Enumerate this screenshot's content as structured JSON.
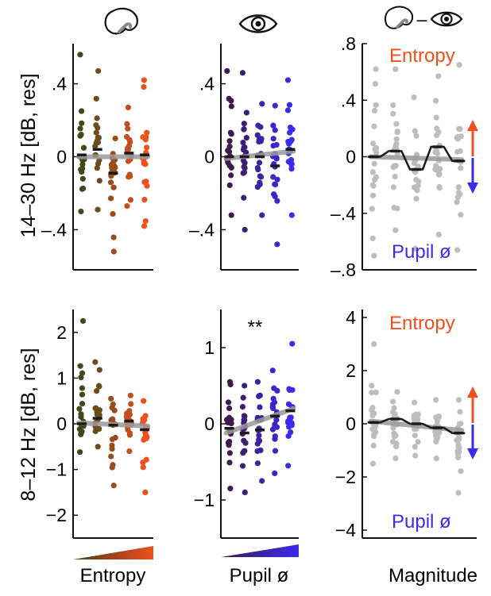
{
  "figure": {
    "row_labels": [
      "14–30 Hz [dB, res]",
      "8–12 Hz [dB, res]"
    ],
    "column_labels": [
      "Entropy",
      "Pupil ø",
      "Magnitude"
    ],
    "column_icons": [
      "brain-icon",
      "eye-icon",
      "brain-minus-eye-icon"
    ],
    "icon_minus": "–",
    "magnitude_labels": {
      "top": "Entropy",
      "bottom": "Pupil ø"
    },
    "colors": {
      "entropy_low": "#3d4a1c",
      "entropy_high": "#f0501e",
      "pupil_low": "#3e1a4e",
      "pupil_high": "#3a2bf0",
      "magnitude": "#bdbdbd",
      "trend": "#9a9a9a",
      "arrow_up": "#f0501e",
      "arrow_down": "#3a2bf0",
      "text_entropy": "#f0501e",
      "text_pupil": "#3a2bf0"
    }
  },
  "chart_data": [
    {
      "type": "scatter",
      "id": "beta-entropy",
      "ylabel": "14–30 Hz [dB, res]",
      "xlabel": "Entropy",
      "ylim": [
        -0.62,
        0.62
      ],
      "yticks": [
        0.4,
        0,
        -0.4
      ],
      "ytick_labels": [
        ".4",
        "0",
        "–.4"
      ],
      "annotation": "",
      "bins": 5,
      "group_means": [
        0.01,
        0.04,
        -0.09,
        0.02,
        0.01
      ],
      "trend": [
        0.0,
        0.0
      ],
      "spread": [
        [
          -0.3,
          0.56
        ],
        [
          -0.29,
          0.47
        ],
        [
          -0.52,
          0.1
        ],
        [
          -0.27,
          0.27
        ],
        [
          -0.38,
          0.42
        ]
      ]
    },
    {
      "type": "scatter",
      "id": "beta-pupil",
      "ylabel": "",
      "xlabel": "Pupil ø",
      "ylim": [
        -0.62,
        0.62
      ],
      "yticks": [
        0.4,
        0,
        -0.4
      ],
      "ytick_labels": [
        ".4",
        "0",
        "–.4"
      ],
      "annotation": "",
      "bins": 5,
      "group_means": [
        0.0,
        0.0,
        0.0,
        -0.05,
        0.04
      ],
      "trend": [
        -0.01,
        0.03
      ],
      "spread": [
        [
          -0.32,
          0.47
        ],
        [
          -0.4,
          0.46
        ],
        [
          -0.32,
          0.29
        ],
        [
          -0.48,
          0.28
        ],
        [
          -0.32,
          0.42
        ]
      ]
    },
    {
      "type": "scatter",
      "id": "beta-magnitude",
      "ylabel": "",
      "xlabel": "Magnitude",
      "ylim": [
        -0.8,
        0.8
      ],
      "yticks": [
        0.8,
        0.4,
        0,
        -0.4,
        -0.8
      ],
      "ytick_labels": [
        ".8",
        ".4",
        "0",
        "–.4",
        "–.8"
      ],
      "annotation": "",
      "bins": 5,
      "group_means": [
        0.0,
        0.04,
        -0.09,
        0.07,
        -0.03
      ],
      "trend": [
        0.0,
        -0.02
      ],
      "spread": [
        [
          -0.7,
          0.62
        ],
        [
          -0.52,
          0.62
        ],
        [
          -0.65,
          0.42
        ],
        [
          -0.55,
          0.57
        ],
        [
          -0.66,
          0.65
        ]
      ]
    },
    {
      "type": "scatter",
      "id": "alpha-entropy",
      "ylabel": "8–12 Hz [dB, res]",
      "xlabel": "Entropy",
      "ylim": [
        -2.5,
        2.5
      ],
      "yticks": [
        2,
        1,
        0,
        -1,
        -2
      ],
      "ytick_labels": [
        "2",
        "1",
        "0",
        "−1",
        "−2"
      ],
      "annotation": "",
      "bins": 5,
      "group_means": [
        0.0,
        0.12,
        -0.03,
        0.06,
        -0.13
      ],
      "trend": [
        0.02,
        -0.05
      ],
      "spread": [
        [
          -0.62,
          2.25
        ],
        [
          -0.5,
          1.35
        ],
        [
          -1.35,
          0.55
        ],
        [
          -0.6,
          0.62
        ],
        [
          -1.5,
          0.5
        ]
      ]
    },
    {
      "type": "scatter",
      "id": "alpha-pupil",
      "ylabel": "",
      "xlabel": "Pupil ø",
      "ylim": [
        -1.5,
        1.5
      ],
      "yticks": [
        1,
        0,
        -1
      ],
      "ytick_labels": [
        "1",
        "0",
        "−1"
      ],
      "annotation": "**",
      "bins": 5,
      "group_means": [
        -0.06,
        -0.12,
        -0.08,
        0.1,
        0.17
      ],
      "trend": [
        -0.12,
        0.2
      ],
      "spread": [
        [
          -0.85,
          0.55
        ],
        [
          -0.9,
          0.5
        ],
        [
          -0.75,
          0.55
        ],
        [
          -0.65,
          0.7
        ],
        [
          -0.55,
          1.05
        ]
      ]
    },
    {
      "type": "scatter",
      "id": "alpha-magnitude",
      "ylabel": "",
      "xlabel": "Magnitude",
      "ylim": [
        -4.3,
        4.3
      ],
      "yticks": [
        4,
        2,
        0,
        -2,
        -4
      ],
      "ytick_labels": [
        "4",
        "2",
        "0",
        "−2",
        "−4"
      ],
      "annotation": "",
      "bins": 5,
      "group_means": [
        0.05,
        0.18,
        0.0,
        -0.15,
        -0.35
      ],
      "trend": [
        0.1,
        -0.25
      ],
      "spread": [
        [
          -1.5,
          3.0
        ],
        [
          -1.3,
          1.2
        ],
        [
          -1.2,
          0.8
        ],
        [
          -1.3,
          0.9
        ],
        [
          -2.6,
          0.9
        ]
      ]
    }
  ]
}
